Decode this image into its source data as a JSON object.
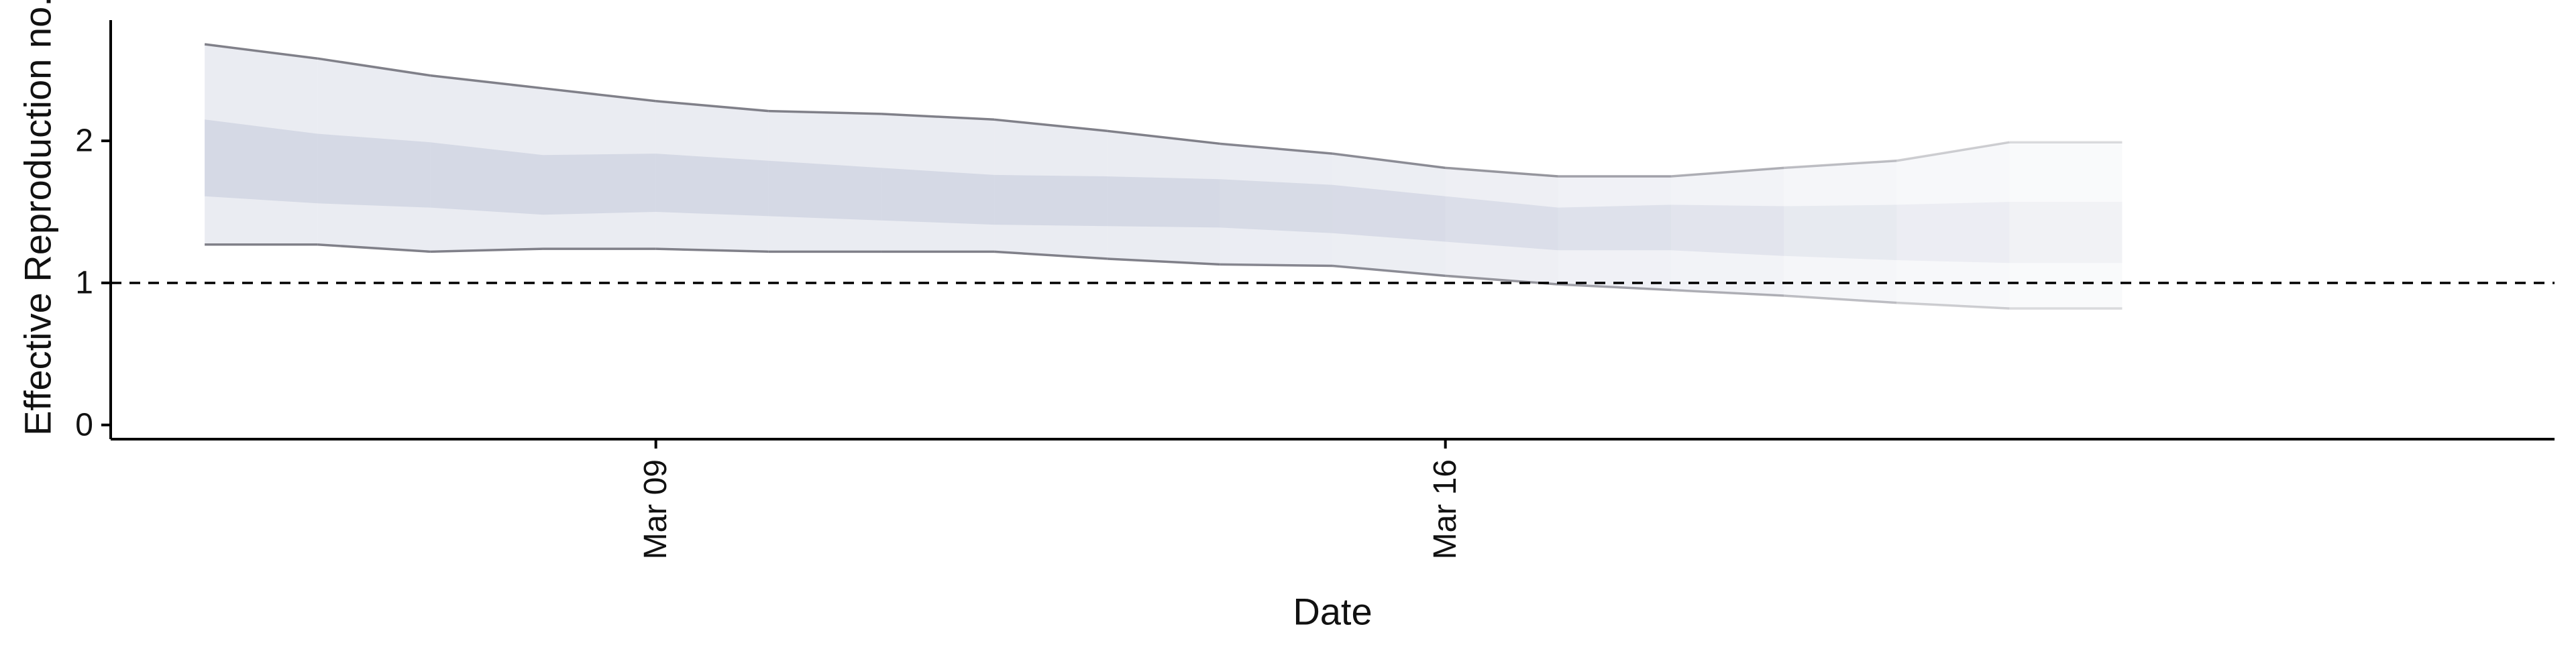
{
  "chart_data": {
    "type": "area",
    "title": "",
    "xlabel": "Date",
    "ylabel": "Effective Reproduction no.",
    "reference_line": {
      "y": 1,
      "style": "dashed"
    },
    "ylim": [
      -0.1,
      2.85
    ],
    "xlim": [
      "2020-03-04T04:00",
      "2020-03-25T20:00"
    ],
    "y_ticks": [
      0,
      1,
      2
    ],
    "x_ticks": [
      {
        "date": "2020-03-09",
        "label": "Mar 09"
      },
      {
        "date": "2020-03-16",
        "label": "Mar 16"
      }
    ],
    "grid": false,
    "legend": "none",
    "colors": {
      "band_fill": "#c8cddd",
      "band_edge_line": "#808089",
      "reference_line": "#000000",
      "axis": "#000000"
    },
    "x": [
      "2020-03-05",
      "2020-03-06",
      "2020-03-07",
      "2020-03-08",
      "2020-03-09",
      "2020-03-10",
      "2020-03-11",
      "2020-03-12",
      "2020-03-13",
      "2020-03-14",
      "2020-03-15",
      "2020-03-16",
      "2020-03-17",
      "2020-03-18",
      "2020-03-19",
      "2020-03-20",
      "2020-03-21",
      "2020-03-22"
    ],
    "series": [
      {
        "lower_90": [
          1.27,
          1.27,
          1.22,
          1.24,
          1.24,
          1.22,
          1.22,
          1.22,
          1.17,
          1.13,
          1.12,
          1.05,
          0.99,
          0.95,
          0.91,
          0.86,
          0.82,
          0.82
        ],
        "upper_90": [
          2.68,
          2.58,
          2.46,
          2.37,
          2.28,
          2.21,
          2.19,
          2.15,
          2.07,
          1.98,
          1.91,
          1.81,
          1.75,
          1.75,
          1.81,
          1.86,
          1.99,
          1.99
        ],
        "lower_50": [
          1.61,
          1.56,
          1.53,
          1.48,
          1.5,
          1.47,
          1.44,
          1.41,
          1.4,
          1.39,
          1.35,
          1.29,
          1.23,
          1.23,
          1.19,
          1.16,
          1.14,
          1.14
        ],
        "upper_50": [
          2.15,
          2.05,
          1.99,
          1.9,
          1.91,
          1.86,
          1.81,
          1.76,
          1.75,
          1.73,
          1.69,
          1.61,
          1.53,
          1.55,
          1.54,
          1.55,
          1.57,
          1.57
        ],
        "opacity": [
          1.0,
          1.0,
          1.0,
          1.0,
          1.0,
          1.0,
          1.0,
          1.0,
          1.0,
          0.95,
          0.9,
          0.82,
          0.72,
          0.62,
          0.5,
          0.38,
          0.28,
          0.28
        ]
      }
    ]
  }
}
